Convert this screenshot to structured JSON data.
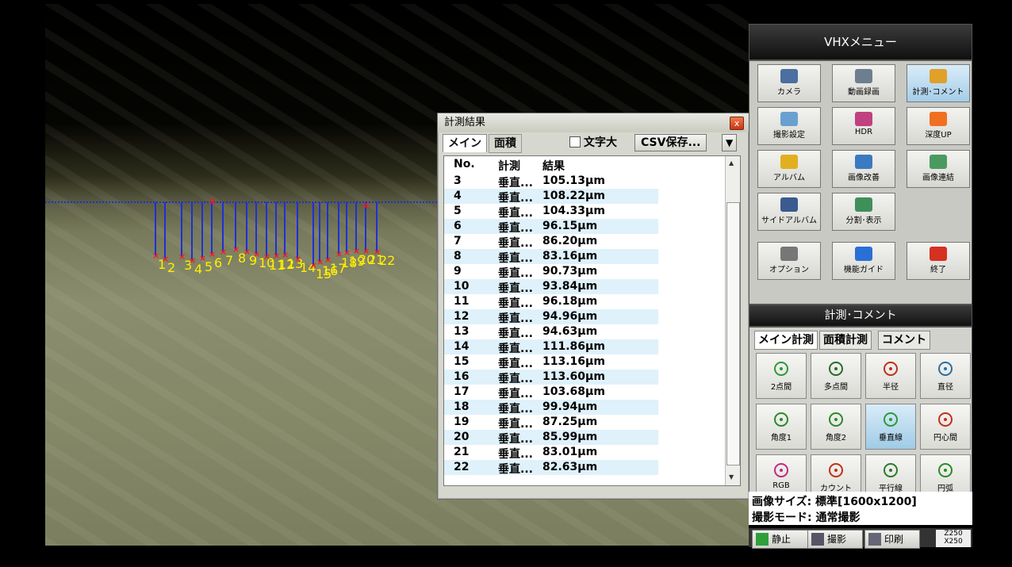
{
  "measure_window": {
    "title": "計測結果",
    "close_label": "x",
    "tabs": [
      "メイン",
      "面積"
    ],
    "text_size_label": "文字大",
    "csv_button": "CSV保存...",
    "dropdown_arrow": "▼",
    "columns": [
      "No.",
      "計測",
      "結果"
    ],
    "rows": [
      {
        "no": "3",
        "type": "垂直...",
        "result": "105.13µm"
      },
      {
        "no": "4",
        "type": "垂直...",
        "result": "108.22µm"
      },
      {
        "no": "5",
        "type": "垂直...",
        "result": "104.33µm"
      },
      {
        "no": "6",
        "type": "垂直...",
        "result": "96.15µm"
      },
      {
        "no": "7",
        "type": "垂直...",
        "result": "86.20µm"
      },
      {
        "no": "8",
        "type": "垂直...",
        "result": "83.16µm"
      },
      {
        "no": "9",
        "type": "垂直...",
        "result": "90.73µm"
      },
      {
        "no": "10",
        "type": "垂直...",
        "result": "93.84µm"
      },
      {
        "no": "11",
        "type": "垂直...",
        "result": "96.18µm"
      },
      {
        "no": "12",
        "type": "垂直...",
        "result": "94.96µm"
      },
      {
        "no": "13",
        "type": "垂直...",
        "result": "94.63µm"
      },
      {
        "no": "14",
        "type": "垂直...",
        "result": "111.86µm"
      },
      {
        "no": "15",
        "type": "垂直...",
        "result": "113.16µm"
      },
      {
        "no": "16",
        "type": "垂直...",
        "result": "113.60µm"
      },
      {
        "no": "17",
        "type": "垂直...",
        "result": "103.68µm"
      },
      {
        "no": "18",
        "type": "垂直...",
        "result": "99.94µm"
      },
      {
        "no": "19",
        "type": "垂直...",
        "result": "87.25µm"
      },
      {
        "no": "20",
        "type": "垂直...",
        "result": "85.99µm"
      },
      {
        "no": "21",
        "type": "垂直...",
        "result": "83.01µm"
      },
      {
        "no": "22",
        "type": "垂直...",
        "result": "82.63µm"
      }
    ]
  },
  "overlay": {
    "labels": [
      "1",
      "2",
      "3",
      "4",
      "5",
      "6",
      "7",
      "8",
      "9",
      "10",
      "11",
      "12",
      "13",
      "14",
      "15",
      "16",
      "17",
      "18",
      "19",
      "20",
      "21",
      "22"
    ],
    "line_color": "#1f2fd8",
    "marker_color": "#ff1a1a",
    "label_color": "#ffee00"
  },
  "vhx_menu": {
    "title": "VHXメニュー",
    "buttons": [
      {
        "label": "カメラ",
        "icon": "camera-icon",
        "color": "#4a6fa0"
      },
      {
        "label": "動画録画",
        "icon": "video-camera-icon",
        "color": "#6d7f8f"
      },
      {
        "label": "計測･コメント",
        "icon": "measure-comment-icon",
        "color": "#e0a02a"
      },
      {
        "label": "撮影設定",
        "icon": "capture-settings-icon",
        "color": "#6aa0d0"
      },
      {
        "label": "HDR",
        "icon": "hdr-icon",
        "color": "#c04080"
      },
      {
        "label": "深度UP",
        "icon": "depth-up-icon",
        "color": "#f07020"
      },
      {
        "label": "アルバム",
        "icon": "album-folder-icon",
        "color": "#e0b020"
      },
      {
        "label": "画像改善",
        "icon": "image-improve-icon",
        "color": "#3a7ac0"
      },
      {
        "label": "画像連結",
        "icon": "image-stitch-icon",
        "color": "#4a9a60"
      },
      {
        "label": "サイドアルバム",
        "icon": "side-album-icon",
        "color": "#3a5a90"
      },
      {
        "label": "分割･表示",
        "icon": "split-view-icon",
        "color": "#3f8f5a"
      },
      {
        "label": "オプション",
        "icon": "tools-icon",
        "color": "#777777"
      },
      {
        "label": "機能ガイド",
        "icon": "help-icon",
        "color": "#2a6fd6"
      },
      {
        "label": "終了",
        "icon": "power-icon",
        "color": "#d63020"
      }
    ],
    "section_title": "計測･コメント",
    "tabs": [
      "メイン計測",
      "面積計測",
      "コメント"
    ],
    "tools": [
      {
        "label": "2点間",
        "icon": "two-point-icon"
      },
      {
        "label": "多点間",
        "icon": "multi-point-icon"
      },
      {
        "label": "半径",
        "icon": "radius-icon"
      },
      {
        "label": "直径",
        "icon": "diameter-icon"
      },
      {
        "label": "角度1",
        "icon": "angle1-icon"
      },
      {
        "label": "角度2",
        "icon": "angle2-icon"
      },
      {
        "label": "垂直線",
        "icon": "perpendicular-icon"
      },
      {
        "label": "円心間",
        "icon": "circle-center-icon"
      },
      {
        "label": "RGB",
        "icon": "rgb-icon"
      },
      {
        "label": "カウント",
        "icon": "count-icon"
      },
      {
        "label": "平行線",
        "icon": "parallel-icon"
      },
      {
        "label": "円弧",
        "icon": "arc-icon"
      }
    ],
    "info_image_size": "画像サイズ: 標準[1600x1200]",
    "info_capture_mode": "撮影モード: 通常撮影",
    "bottom_buttons": [
      "静止",
      "撮影",
      "印刷"
    ],
    "zoom_readout": "Z250\nX250"
  }
}
